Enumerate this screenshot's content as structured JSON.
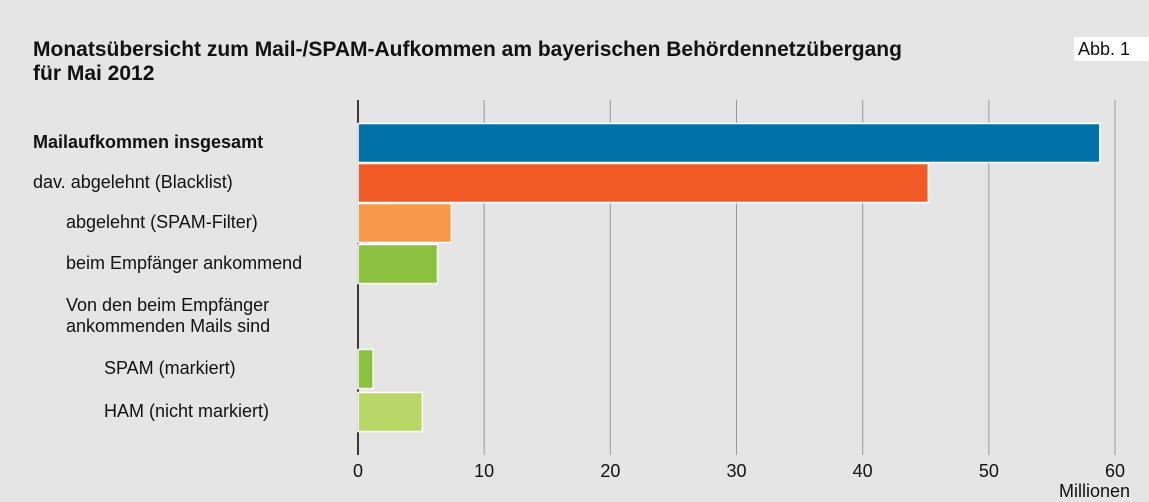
{
  "chart_data": {
    "type": "barh",
    "title": "Monatsübersicht zum Mail-/SPAM-Aufkommen am bayerischen Behördennetzübergang\nfür Mai 2012",
    "figure_label": "Abb. 1",
    "categories": [
      "Mailaufkommen insgesamt",
      "dav. abgelehnt (Blacklist)",
      "abgelehnt (SPAM-Filter)",
      "beim Empfänger ankommend",
      "Von den beim Empfänger\nankommenden Mails sind",
      "SPAM (markiert)",
      "HAM (nicht markiert)"
    ],
    "values": [
      58.8,
      45.2,
      7.4,
      6.3,
      null,
      1.2,
      5.1
    ],
    "colors": [
      "#0072a8",
      "#f15a24",
      "#f7984b",
      "#8cc03f",
      null,
      "#8cc03f",
      "#b8d766"
    ],
    "xlabel": "Millionen",
    "xlim": [
      0,
      60
    ],
    "xticks": [
      0,
      10,
      20,
      30,
      40,
      50,
      60
    ],
    "grid": true
  }
}
